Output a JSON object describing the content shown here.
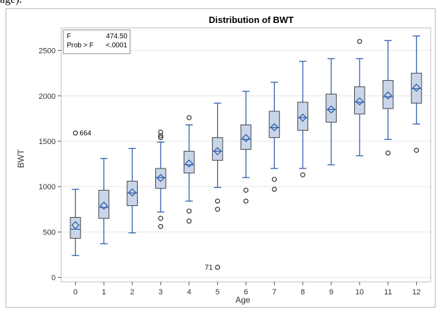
{
  "caption_fragment": "age).",
  "chart_data": {
    "type": "box",
    "title": "Distribution of BWT",
    "xlabel": "Age",
    "ylabel": "BWT",
    "ylim": [
      -50,
      2750
    ],
    "yticks": [
      0,
      500,
      1000,
      1500,
      2000,
      2500
    ],
    "categories": [
      "0",
      "1",
      "2",
      "3",
      "4",
      "5",
      "6",
      "7",
      "8",
      "9",
      "10",
      "11",
      "12"
    ],
    "grid": "horizontal",
    "stats_inset": {
      "position": "top-left",
      "rows": [
        {
          "label": "F",
          "value": "474.50"
        },
        {
          "label": "Prob > F",
          "value": "<.0001"
        }
      ]
    },
    "boxes": [
      {
        "x": "0",
        "whisker_low": 240,
        "q1": 430,
        "median": 530,
        "q3": 660,
        "whisker_high": 970,
        "mean": 575,
        "outliers": [
          1590
        ],
        "outlier_labels": [
          {
            "value": 1590,
            "label": "664"
          }
        ]
      },
      {
        "x": "1",
        "whisker_low": 370,
        "q1": 650,
        "median": 770,
        "q3": 960,
        "whisker_high": 1310,
        "mean": 790,
        "outliers": []
      },
      {
        "x": "2",
        "whisker_low": 490,
        "q1": 790,
        "median": 930,
        "q3": 1060,
        "whisker_high": 1420,
        "mean": 935,
        "outliers": []
      },
      {
        "x": "3",
        "whisker_low": 720,
        "q1": 980,
        "median": 1100,
        "q3": 1200,
        "whisker_high": 1490,
        "mean": 1095,
        "outliers": [
          1540,
          1560,
          1600,
          650,
          560
        ]
      },
      {
        "x": "4",
        "whisker_low": 840,
        "q1": 1150,
        "median": 1240,
        "q3": 1390,
        "whisker_high": 1680,
        "mean": 1255,
        "outliers": [
          1760,
          730,
          620
        ]
      },
      {
        "x": "5",
        "whisker_low": 990,
        "q1": 1290,
        "median": 1390,
        "q3": 1540,
        "whisker_high": 1920,
        "mean": 1390,
        "outliers": [
          840,
          750,
          110
        ],
        "outlier_labels": [
          {
            "value": 110,
            "label": "71"
          }
        ]
      },
      {
        "x": "6",
        "whisker_low": 1100,
        "q1": 1410,
        "median": 1520,
        "q3": 1680,
        "whisker_high": 2050,
        "mean": 1535,
        "outliers": [
          960,
          840
        ]
      },
      {
        "x": "7",
        "whisker_low": 1200,
        "q1": 1540,
        "median": 1650,
        "q3": 1830,
        "whisker_high": 2150,
        "mean": 1655,
        "outliers": [
          1080,
          970
        ]
      },
      {
        "x": "8",
        "whisker_low": 1200,
        "q1": 1620,
        "median": 1760,
        "q3": 1930,
        "whisker_high": 2380,
        "mean": 1760,
        "outliers": [
          1130
        ]
      },
      {
        "x": "9",
        "whisker_low": 1240,
        "q1": 1710,
        "median": 1850,
        "q3": 2020,
        "whisker_high": 2410,
        "mean": 1850,
        "outliers": []
      },
      {
        "x": "10",
        "whisker_low": 1340,
        "q1": 1800,
        "median": 1930,
        "q3": 2100,
        "whisker_high": 2410,
        "mean": 1940,
        "outliers": [
          2600
        ]
      },
      {
        "x": "11",
        "whisker_low": 1520,
        "q1": 1860,
        "median": 1990,
        "q3": 2170,
        "whisker_high": 2610,
        "mean": 2005,
        "outliers": [
          1370
        ]
      },
      {
        "x": "12",
        "whisker_low": 1690,
        "q1": 1920,
        "median": 2080,
        "q3": 2250,
        "whisker_high": 2660,
        "mean": 2090,
        "outliers": [
          1400
        ]
      }
    ],
    "colors": {
      "box_fill": "#c9d5e8",
      "box_stroke": "#444444",
      "whisker": "#2f5faa",
      "median": "#2f5faa",
      "mean_marker": "#2f5faa",
      "outlier": "#333333",
      "grid": "#e6e6e6"
    }
  }
}
